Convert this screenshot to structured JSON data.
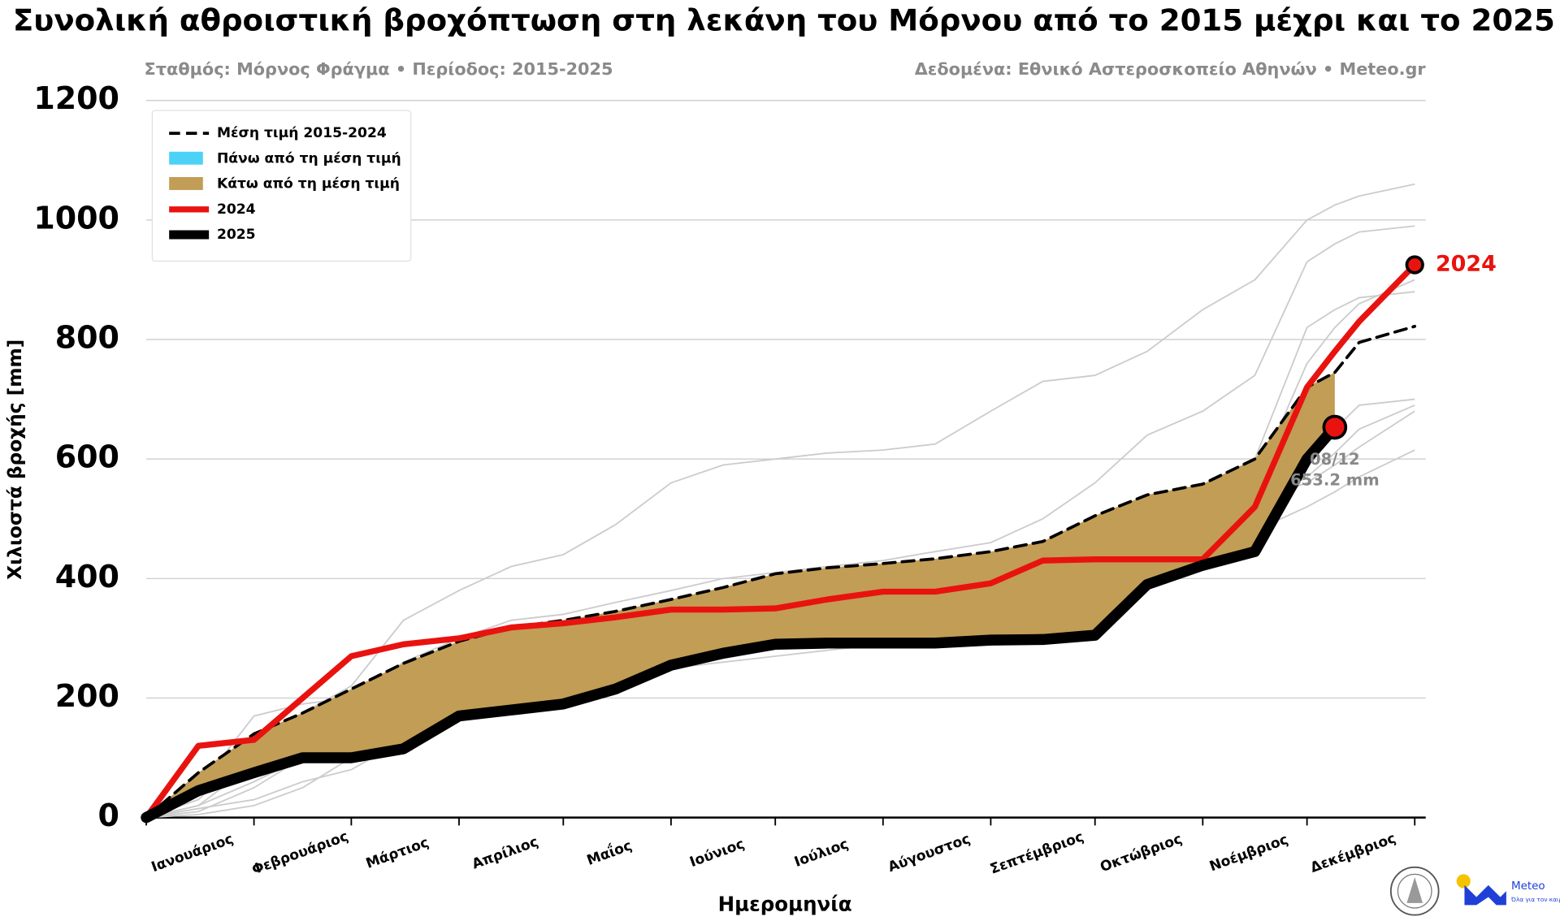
{
  "chart_data": {
    "type": "line",
    "title": "Συνολική αθροιστική βροχόπτωση στη λεκάνη του Μόρνου από το 2015 μέχρι και το 2025",
    "subtitle": "Σταθμός: Μόρνος Φράγμα • Περίοδος: 2015-2025",
    "source": "Δεδομένα: Εθνικό Αστεροσκοπείο Αθηνών • Meteo.gr",
    "xlabel": "Ημερομηνία",
    "ylabel": "Χιλιοστά βροχής [mm]",
    "xlim": [
      0,
      365
    ],
    "ylim": [
      0,
      1200
    ],
    "yticks": [
      0,
      200,
      400,
      600,
      800,
      1000,
      1200
    ],
    "xticks": [
      {
        "value": 0,
        "label": "Ιανουάριος"
      },
      {
        "value": 31,
        "label": "Φεβρουάριος"
      },
      {
        "value": 59,
        "label": "Μάρτιος"
      },
      {
        "value": 90,
        "label": "Απρίλιος"
      },
      {
        "value": 120,
        "label": "Μαΐος"
      },
      {
        "value": 151,
        "label": "Ιούνιος"
      },
      {
        "value": 181,
        "label": "Ιούλιος"
      },
      {
        "value": 212,
        "label": "Αύγουστος"
      },
      {
        "value": 243,
        "label": "Σεπτέμβριος"
      },
      {
        "value": 273,
        "label": "Οκτώβριος"
      },
      {
        "value": 304,
        "label": "Νοέμβριος"
      },
      {
        "value": 334,
        "label": "Δεκέμβριος"
      }
    ],
    "grid": true,
    "legend": "upper left",
    "x": [
      0,
      15,
      31,
      45,
      59,
      74,
      90,
      105,
      120,
      135,
      151,
      166,
      181,
      196,
      212,
      227,
      243,
      258,
      273,
      288,
      304,
      319,
      334,
      342,
      349,
      365
    ],
    "fills": [
      {
        "name": "Πάνω από τη μέση τιμή",
        "color": "#4dd2f7"
      },
      {
        "name": "Κάτω από τη μέση τιμή",
        "color": "#c29d55"
      }
    ],
    "series": [
      {
        "name": "Μέση τιμή 2015-2024",
        "color": "#000000",
        "dashed": true,
        "values": [
          0,
          75,
          140,
          175,
          215,
          258,
          295,
          318,
          330,
          345,
          365,
          385,
          408,
          418,
          425,
          433,
          445,
          462,
          505,
          540,
          558,
          600,
          720,
          745,
          795,
          822
        ]
      },
      {
        "name": "2024",
        "color": "#e8130f",
        "values": [
          0,
          120,
          130,
          200,
          270,
          290,
          300,
          318,
          325,
          335,
          348,
          348,
          350,
          365,
          378,
          378,
          392,
          430,
          432,
          432,
          432,
          520,
          720,
          780,
          830,
          925
        ]
      },
      {
        "name": "2025",
        "color": "#000000",
        "values": [
          0,
          45,
          75,
          100,
          100,
          115,
          170,
          180,
          190,
          215,
          255,
          275,
          290,
          292,
          292,
          292,
          297,
          298,
          305,
          390,
          422,
          445,
          600,
          653.2,
          null,
          null
        ],
        "end_date": "08/12",
        "end_label": "653.2 mm"
      },
      {
        "color": "#cccccc",
        "values": [
          0,
          30,
          120,
          175,
          220,
          330,
          380,
          420,
          440,
          490,
          560,
          590,
          600,
          610,
          615,
          625,
          680,
          730,
          740,
          780,
          850,
          900,
          1000,
          1025,
          1040,
          1060
        ]
      },
      {
        "color": "#cccccc",
        "values": [
          0,
          20,
          90,
          150,
          200,
          260,
          300,
          330,
          340,
          360,
          380,
          400,
          410,
          420,
          430,
          445,
          460,
          500,
          560,
          640,
          680,
          740,
          930,
          960,
          980,
          990
        ]
      },
      {
        "color": "#cccccc",
        "values": [
          0,
          40,
          110,
          160,
          200,
          250,
          280,
          300,
          320,
          330,
          340,
          350,
          360,
          370,
          380,
          390,
          395,
          410,
          470,
          490,
          520,
          560,
          760,
          820,
          860,
          900
        ]
      },
      {
        "color": "#cccccc",
        "values": [
          0,
          10,
          50,
          100,
          150,
          200,
          240,
          270,
          290,
          300,
          320,
          340,
          350,
          360,
          370,
          380,
          400,
          440,
          480,
          510,
          540,
          600,
          820,
          850,
          870,
          880
        ]
      },
      {
        "color": "#cccccc",
        "values": [
          0,
          50,
          170,
          190,
          200,
          240,
          260,
          280,
          290,
          300,
          320,
          330,
          340,
          345,
          350,
          360,
          380,
          410,
          450,
          470,
          500,
          520,
          590,
          650,
          690,
          700
        ]
      },
      {
        "color": "#cccccc",
        "values": [
          0,
          15,
          30,
          60,
          80,
          130,
          180,
          190,
          200,
          210,
          250,
          260,
          270,
          280,
          290,
          300,
          330,
          380,
          410,
          450,
          490,
          520,
          570,
          610,
          650,
          690
        ]
      },
      {
        "color": "#cccccc",
        "values": [
          0,
          5,
          20,
          50,
          100,
          150,
          200,
          240,
          260,
          280,
          310,
          330,
          340,
          350,
          360,
          380,
          400,
          420,
          470,
          490,
          520,
          530,
          560,
          590,
          620,
          680
        ]
      },
      {
        "color": "#cccccc",
        "values": [
          0,
          20,
          60,
          100,
          130,
          170,
          200,
          220,
          240,
          260,
          290,
          300,
          310,
          320,
          330,
          340,
          350,
          380,
          420,
          440,
          460,
          480,
          520,
          545,
          570,
          615
        ]
      }
    ],
    "logo": {
      "name": "Meteo",
      "tagline": "Όλα για τον καιρό"
    }
  }
}
